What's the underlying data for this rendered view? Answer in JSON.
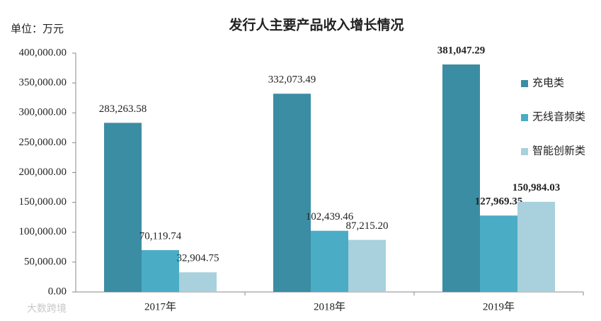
{
  "chart_data": {
    "type": "bar",
    "title": "发行人主要产品收入增长情况",
    "unit_label": "单位：万元",
    "watermark": "大数跨境",
    "categories": [
      "2017年",
      "2018年",
      "2019年"
    ],
    "series": [
      {
        "name": "充电类",
        "color": "#3b8da3",
        "values": [
          283263.58,
          332073.49,
          381047.29
        ],
        "value_labels": [
          "283,263.58",
          "332,073.49",
          "381,047.29"
        ]
      },
      {
        "name": "无线音频类",
        "color": "#4bacc6",
        "values": [
          70119.74,
          102439.46,
          127969.35
        ],
        "value_labels": [
          "70,119.74",
          "102,439.46",
          "127,969.35"
        ]
      },
      {
        "name": "智能创新类",
        "color": "#a8d0dd",
        "values": [
          32904.75,
          87215.2,
          150984.03
        ],
        "value_labels": [
          "32,904.75",
          "87,215.20",
          "150,984.03"
        ]
      }
    ],
    "ylim": [
      0,
      400000
    ],
    "yticks": [
      {
        "value": 0,
        "label": "0.00"
      },
      {
        "value": 50000,
        "label": "50,000.00"
      },
      {
        "value": 100000,
        "label": "100,000.00"
      },
      {
        "value": 150000,
        "label": "150,000.00"
      },
      {
        "value": 200000,
        "label": "200,000.00"
      },
      {
        "value": 250000,
        "label": "250,000.00"
      },
      {
        "value": 300000,
        "label": "300,000.00"
      },
      {
        "value": 350000,
        "label": "350,000.00"
      },
      {
        "value": 400000,
        "label": "400,000.00"
      }
    ],
    "legend": "right"
  }
}
